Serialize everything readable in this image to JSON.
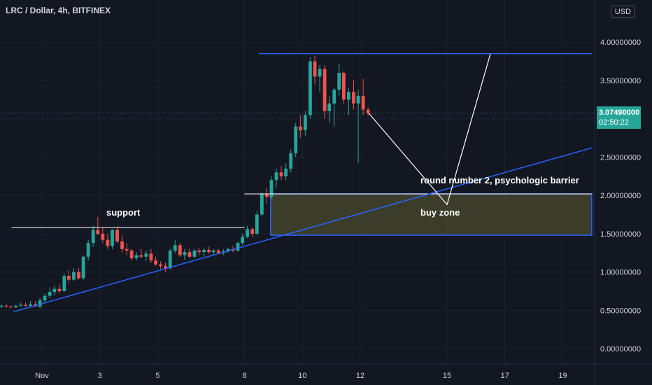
{
  "header": {
    "title": "LRC / Dollar, 4h, BITFINEX",
    "currency_button": "USD"
  },
  "price_label": {
    "price": "3.07490000",
    "countdown": "02:50:22"
  },
  "annotations": {
    "support": "support",
    "round_number": "round number 2, psychologic barrier",
    "buy_zone": "buy zone"
  },
  "colors": {
    "up": "#26a69a",
    "down": "#ef5350",
    "trend": "#2962ff",
    "zone_fill": "#4a4a2e",
    "background": "#131722"
  },
  "chart_data": {
    "type": "candlestick",
    "title": "LRC / Dollar, 4h, BITFINEX",
    "y_ticks": [
      "4.00000000",
      "3.50000000",
      "3.00000000",
      "2.50000000",
      "2.00000000",
      "1.50000000",
      "1.00000000",
      "0.50000000",
      "0.00000000"
    ],
    "y_tick_values": [
      4,
      3.5,
      3,
      2.5,
      2,
      1.5,
      1,
      0.5,
      0
    ],
    "ylim": [
      -0.2,
      4.55
    ],
    "x_ticks": [
      "Nov",
      "3",
      "5",
      "8",
      "10",
      "12",
      "15",
      "17",
      "19"
    ],
    "x_tick_days": [
      1,
      3,
      5,
      8,
      10,
      12,
      15,
      17,
      19
    ],
    "xlim": [
      -0.45,
      20.1
    ],
    "current_price": 3.0749,
    "candles": [
      {
        "d": -0.4,
        "o": 0.55,
        "h": 0.58,
        "l": 0.53,
        "c": 0.56
      },
      {
        "d": -0.23,
        "o": 0.56,
        "h": 0.58,
        "l": 0.54,
        "c": 0.55
      },
      {
        "d": -0.07,
        "o": 0.55,
        "h": 0.56,
        "l": 0.53,
        "c": 0.54
      },
      {
        "d": 0.1,
        "o": 0.54,
        "h": 0.57,
        "l": 0.53,
        "c": 0.56
      },
      {
        "d": 0.27,
        "o": 0.56,
        "h": 0.6,
        "l": 0.55,
        "c": 0.57
      },
      {
        "d": 0.43,
        "o": 0.57,
        "h": 0.6,
        "l": 0.55,
        "c": 0.56
      },
      {
        "d": 0.6,
        "o": 0.56,
        "h": 0.62,
        "l": 0.55,
        "c": 0.58
      },
      {
        "d": 0.77,
        "o": 0.58,
        "h": 0.62,
        "l": 0.56,
        "c": 0.55
      },
      {
        "d": 0.93,
        "o": 0.55,
        "h": 0.66,
        "l": 0.53,
        "c": 0.63
      },
      {
        "d": 1.1,
        "o": 0.63,
        "h": 0.72,
        "l": 0.6,
        "c": 0.69
      },
      {
        "d": 1.27,
        "o": 0.69,
        "h": 0.8,
        "l": 0.66,
        "c": 0.74
      },
      {
        "d": 1.43,
        "o": 0.74,
        "h": 0.82,
        "l": 0.7,
        "c": 0.78
      },
      {
        "d": 1.6,
        "o": 0.78,
        "h": 0.84,
        "l": 0.72,
        "c": 0.75
      },
      {
        "d": 1.77,
        "o": 0.75,
        "h": 0.98,
        "l": 0.74,
        "c": 0.95
      },
      {
        "d": 1.93,
        "o": 0.95,
        "h": 1.02,
        "l": 0.86,
        "c": 0.9
      },
      {
        "d": 2.1,
        "o": 0.9,
        "h": 1.05,
        "l": 0.88,
        "c": 1.0
      },
      {
        "d": 2.27,
        "o": 1.0,
        "h": 1.05,
        "l": 0.9,
        "c": 0.92
      },
      {
        "d": 2.43,
        "o": 0.92,
        "h": 1.22,
        "l": 0.9,
        "c": 1.2
      },
      {
        "d": 2.6,
        "o": 1.2,
        "h": 1.42,
        "l": 1.15,
        "c": 1.38
      },
      {
        "d": 2.77,
        "o": 1.38,
        "h": 1.6,
        "l": 1.33,
        "c": 1.55
      },
      {
        "d": 2.93,
        "o": 1.55,
        "h": 1.72,
        "l": 1.48,
        "c": 1.5
      },
      {
        "d": 3.1,
        "o": 1.5,
        "h": 1.58,
        "l": 1.38,
        "c": 1.42
      },
      {
        "d": 3.27,
        "o": 1.42,
        "h": 1.5,
        "l": 1.3,
        "c": 1.34
      },
      {
        "d": 3.43,
        "o": 1.34,
        "h": 1.56,
        "l": 1.3,
        "c": 1.55
      },
      {
        "d": 3.6,
        "o": 1.55,
        "h": 1.6,
        "l": 1.38,
        "c": 1.4
      },
      {
        "d": 3.77,
        "o": 1.4,
        "h": 1.48,
        "l": 1.25,
        "c": 1.3
      },
      {
        "d": 3.93,
        "o": 1.3,
        "h": 1.38,
        "l": 1.22,
        "c": 1.28
      },
      {
        "d": 4.1,
        "o": 1.28,
        "h": 1.3,
        "l": 1.16,
        "c": 1.18
      },
      {
        "d": 4.27,
        "o": 1.18,
        "h": 1.26,
        "l": 1.15,
        "c": 1.22
      },
      {
        "d": 4.43,
        "o": 1.22,
        "h": 1.3,
        "l": 1.18,
        "c": 1.2
      },
      {
        "d": 4.6,
        "o": 1.2,
        "h": 1.28,
        "l": 1.14,
        "c": 1.24
      },
      {
        "d": 4.77,
        "o": 1.24,
        "h": 1.3,
        "l": 1.12,
        "c": 1.15
      },
      {
        "d": 4.93,
        "o": 1.15,
        "h": 1.2,
        "l": 1.08,
        "c": 1.1
      },
      {
        "d": 5.1,
        "o": 1.1,
        "h": 1.14,
        "l": 1.04,
        "c": 1.08
      },
      {
        "d": 5.27,
        "o": 1.08,
        "h": 1.12,
        "l": 1.0,
        "c": 1.05
      },
      {
        "d": 5.43,
        "o": 1.05,
        "h": 1.3,
        "l": 1.03,
        "c": 1.28
      },
      {
        "d": 5.6,
        "o": 1.28,
        "h": 1.42,
        "l": 1.25,
        "c": 1.35
      },
      {
        "d": 5.77,
        "o": 1.35,
        "h": 1.38,
        "l": 1.2,
        "c": 1.22
      },
      {
        "d": 5.93,
        "o": 1.22,
        "h": 1.3,
        "l": 1.16,
        "c": 1.26
      },
      {
        "d": 6.1,
        "o": 1.26,
        "h": 1.3,
        "l": 1.18,
        "c": 1.2
      },
      {
        "d": 6.27,
        "o": 1.2,
        "h": 1.3,
        "l": 1.18,
        "c": 1.28
      },
      {
        "d": 6.43,
        "o": 1.28,
        "h": 1.32,
        "l": 1.22,
        "c": 1.26
      },
      {
        "d": 6.6,
        "o": 1.26,
        "h": 1.32,
        "l": 1.2,
        "c": 1.29
      },
      {
        "d": 6.77,
        "o": 1.29,
        "h": 1.33,
        "l": 1.24,
        "c": 1.26
      },
      {
        "d": 6.93,
        "o": 1.26,
        "h": 1.3,
        "l": 1.22,
        "c": 1.28
      },
      {
        "d": 7.1,
        "o": 1.28,
        "h": 1.3,
        "l": 1.23,
        "c": 1.25
      },
      {
        "d": 7.27,
        "o": 1.25,
        "h": 1.3,
        "l": 1.22,
        "c": 1.27
      },
      {
        "d": 7.43,
        "o": 1.27,
        "h": 1.32,
        "l": 1.25,
        "c": 1.3
      },
      {
        "d": 7.6,
        "o": 1.3,
        "h": 1.34,
        "l": 1.26,
        "c": 1.28
      },
      {
        "d": 7.77,
        "o": 1.28,
        "h": 1.4,
        "l": 1.27,
        "c": 1.38
      },
      {
        "d": 7.93,
        "o": 1.38,
        "h": 1.5,
        "l": 1.35,
        "c": 1.46
      },
      {
        "d": 8.1,
        "o": 1.46,
        "h": 1.6,
        "l": 1.44,
        "c": 1.56
      },
      {
        "d": 8.27,
        "o": 1.56,
        "h": 1.58,
        "l": 1.46,
        "c": 1.5
      },
      {
        "d": 8.43,
        "o": 1.5,
        "h": 1.8,
        "l": 1.48,
        "c": 1.75
      },
      {
        "d": 8.6,
        "o": 1.75,
        "h": 2.05,
        "l": 1.72,
        "c": 2.02
      },
      {
        "d": 8.77,
        "o": 2.02,
        "h": 2.1,
        "l": 1.9,
        "c": 1.98
      },
      {
        "d": 8.93,
        "o": 1.98,
        "h": 2.25,
        "l": 1.95,
        "c": 2.2
      },
      {
        "d": 9.1,
        "o": 2.2,
        "h": 2.35,
        "l": 2.1,
        "c": 2.3
      },
      {
        "d": 9.27,
        "o": 2.3,
        "h": 2.38,
        "l": 2.2,
        "c": 2.25
      },
      {
        "d": 9.43,
        "o": 2.25,
        "h": 2.42,
        "l": 2.2,
        "c": 2.35
      },
      {
        "d": 9.6,
        "o": 2.35,
        "h": 2.6,
        "l": 2.3,
        "c": 2.55
      },
      {
        "d": 9.77,
        "o": 2.55,
        "h": 2.95,
        "l": 2.5,
        "c": 2.9
      },
      {
        "d": 9.93,
        "o": 2.9,
        "h": 3.05,
        "l": 2.75,
        "c": 2.85
      },
      {
        "d": 10.1,
        "o": 2.85,
        "h": 3.1,
        "l": 2.78,
        "c": 3.05
      },
      {
        "d": 10.27,
        "o": 3.05,
        "h": 3.8,
        "l": 3.0,
        "c": 3.75
      },
      {
        "d": 10.43,
        "o": 3.75,
        "h": 3.82,
        "l": 3.45,
        "c": 3.55
      },
      {
        "d": 10.6,
        "o": 3.55,
        "h": 3.7,
        "l": 3.35,
        "c": 3.65
      },
      {
        "d": 10.77,
        "o": 3.65,
        "h": 3.7,
        "l": 3.0,
        "c": 3.1
      },
      {
        "d": 10.93,
        "o": 3.1,
        "h": 3.3,
        "l": 2.95,
        "c": 3.2
      },
      {
        "d": 11.1,
        "o": 3.2,
        "h": 3.4,
        "l": 2.9,
        "c": 3.38
      },
      {
        "d": 11.27,
        "o": 3.38,
        "h": 3.72,
        "l": 3.3,
        "c": 3.6
      },
      {
        "d": 11.43,
        "o": 3.6,
        "h": 3.62,
        "l": 3.2,
        "c": 3.25
      },
      {
        "d": 11.6,
        "o": 3.25,
        "h": 3.4,
        "l": 3.05,
        "c": 3.35
      },
      {
        "d": 11.77,
        "o": 3.35,
        "h": 3.5,
        "l": 3.12,
        "c": 3.2
      },
      {
        "d": 11.93,
        "o": 3.2,
        "h": 3.38,
        "l": 2.42,
        "c": 3.3
      },
      {
        "d": 12.1,
        "o": 3.3,
        "h": 3.52,
        "l": 3.05,
        "c": 3.12
      },
      {
        "d": 12.27,
        "o": 3.12,
        "h": 3.15,
        "l": 3.04,
        "c": 3.07
      }
    ],
    "lines": {
      "support": {
        "d1": -0.05,
        "d2": 8.0,
        "v": 1.58
      },
      "resistance": {
        "d1": 8.5,
        "d2": 20.0,
        "v": 3.85
      },
      "round_number": {
        "d1": 8.0,
        "d2": 20.0,
        "v": 2.02
      },
      "trendline": {
        "d1": 0.0,
        "v1": 0.48,
        "d2": 20.0,
        "v2": 2.62
      },
      "buy_zone": {
        "d1": 8.9,
        "d2": 20.0,
        "top": 2.02,
        "bottom": 1.48
      },
      "projection": [
        {
          "d": 12.3,
          "v": 3.07
        },
        {
          "d": 15.0,
          "v": 1.88
        },
        {
          "d": 16.5,
          "v": 3.85
        }
      ]
    }
  }
}
